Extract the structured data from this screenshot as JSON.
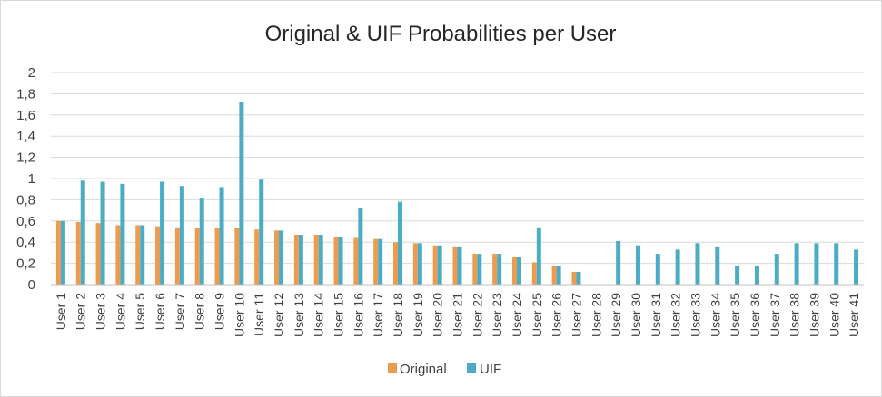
{
  "chart_data": {
    "type": "bar",
    "title": "Original & UIF Probabilities per User",
    "categories": [
      "User 1",
      "User 2",
      "User 3",
      "User 4",
      "User 5",
      "User 6",
      "User 7",
      "User 8",
      "User 9",
      "User 10",
      "User 11",
      "User 12",
      "User 13",
      "User 14",
      "User 15",
      "User 16",
      "User 17",
      "User 18",
      "User 19",
      "User 20",
      "User 21",
      "User 22",
      "User 23",
      "User 24",
      "User 25",
      "User 26",
      "User 27",
      "User 28",
      "User 29",
      "User 30",
      "User 31",
      "User 32",
      "User 33",
      "User 34",
      "User 35",
      "User 36",
      "User 37",
      "User 38",
      "User 39",
      "User 40",
      "User 41"
    ],
    "series": [
      {
        "name": "Original",
        "color": "#ed9b4f",
        "values": [
          0.6,
          0.59,
          0.58,
          0.56,
          0.56,
          0.55,
          0.54,
          0.53,
          0.53,
          0.53,
          0.52,
          0.51,
          0.47,
          0.47,
          0.45,
          0.44,
          0.43,
          0.4,
          0.39,
          0.37,
          0.36,
          0.29,
          0.29,
          0.26,
          0.21,
          0.18,
          0.12,
          0,
          0,
          0,
          0,
          0,
          0,
          0,
          0,
          0,
          0,
          0,
          0,
          0,
          0
        ]
      },
      {
        "name": "UIF",
        "color": "#4bacc6",
        "values": [
          0.6,
          0.98,
          0.97,
          0.95,
          0.56,
          0.97,
          0.93,
          0.82,
          0.92,
          1.72,
          0.99,
          0.51,
          0.47,
          0.47,
          0.45,
          0.72,
          0.43,
          0.78,
          0.39,
          0.37,
          0.36,
          0.29,
          0.29,
          0.26,
          0.54,
          0.18,
          0.12,
          0,
          0.41,
          0.37,
          0.29,
          0.33,
          0.39,
          0.36,
          0.18,
          0.18,
          0.29,
          0.39,
          0.39,
          0.39,
          0.33
        ]
      }
    ],
    "ylim": [
      0,
      2
    ],
    "yticks": [
      "0",
      "0,2",
      "0,4",
      "0,6",
      "0,8",
      "1",
      "1,2",
      "1,4",
      "1,6",
      "1,8",
      "2"
    ],
    "ytick_values": [
      0,
      0.2,
      0.4,
      0.6,
      0.8,
      1,
      1.2,
      1.4,
      1.6,
      1.8,
      2
    ],
    "grid": true,
    "legend_position": "bottom",
    "xlabel": "",
    "ylabel": ""
  }
}
